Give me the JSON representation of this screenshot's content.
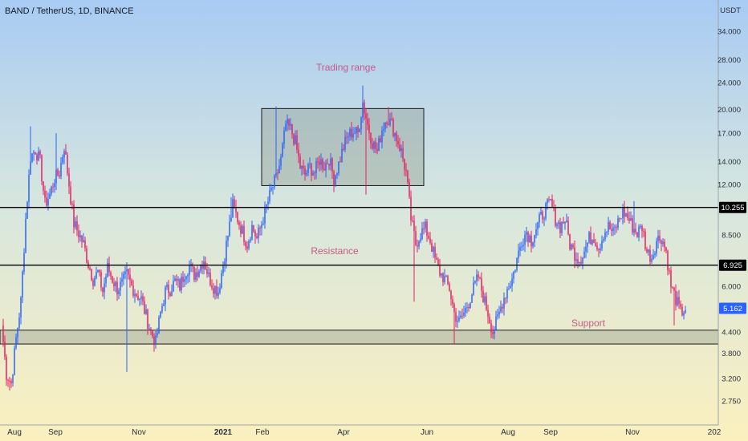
{
  "header": {
    "title": "BAND / TetherUS, 1D, BINANCE",
    "currency": "USDT"
  },
  "annotations": {
    "trading_range": "Trading range",
    "resistance": "Resistance",
    "support": "Support"
  },
  "colors": {
    "up": "#2962ff",
    "down": "#e91e63",
    "level_line": "#000000",
    "zone_fill": "#8c9687",
    "last_price_bg": "#2962ff"
  },
  "chart_data": {
    "type": "candlestick",
    "scale": "log",
    "ylim": [
      2.5,
      37
    ],
    "yticks": [
      "34.000",
      "28.000",
      "24.000",
      "20.000",
      "17.000",
      "14.000",
      "12.000",
      "8.500",
      "6.000",
      "4.400",
      "3.800",
      "3.200",
      "2.750"
    ],
    "xticks": [
      "Aug",
      "Sep",
      "Nov",
      "2021",
      "Feb",
      "Apr",
      "Jun",
      "Aug",
      "Sep",
      "Nov",
      "202"
    ],
    "levels": [
      {
        "value": 10.255,
        "label": "10.255"
      },
      {
        "value": 6.925,
        "label": "6.925"
      }
    ],
    "last_price": {
      "value": 5.162,
      "label": "5.162"
    },
    "zones": [
      {
        "name": "Trading range",
        "y_low": 11.9,
        "y_high": 20.1
      },
      {
        "name": "Support",
        "y_low": 4.05,
        "y_high": 4.45
      }
    ],
    "close_series": [
      {
        "i": 0,
        "v": 4.6
      },
      {
        "i": 3,
        "v": 3.3
      },
      {
        "i": 6,
        "v": 3.1
      },
      {
        "i": 9,
        "v": 4.2
      },
      {
        "i": 12,
        "v": 5.4
      },
      {
        "i": 15,
        "v": 9.5
      },
      {
        "i": 18,
        "v": 14.5
      },
      {
        "i": 21,
        "v": 15.2
      },
      {
        "i": 24,
        "v": 14.0
      },
      {
        "i": 27,
        "v": 10.5
      },
      {
        "i": 30,
        "v": 11.2
      },
      {
        "i": 33,
        "v": 12.5
      },
      {
        "i": 36,
        "v": 13.0
      },
      {
        "i": 39,
        "v": 15.6
      },
      {
        "i": 42,
        "v": 12.0
      },
      {
        "i": 45,
        "v": 9.2
      },
      {
        "i": 48,
        "v": 8.6
      },
      {
        "i": 51,
        "v": 8.0
      },
      {
        "i": 54,
        "v": 7.0
      },
      {
        "i": 57,
        "v": 6.3
      },
      {
        "i": 60,
        "v": 6.6
      },
      {
        "i": 63,
        "v": 5.8
      },
      {
        "i": 66,
        "v": 6.8
      },
      {
        "i": 69,
        "v": 6.3
      },
      {
        "i": 72,
        "v": 5.9
      },
      {
        "i": 75,
        "v": 6.1
      },
      {
        "i": 78,
        "v": 6.5
      },
      {
        "i": 81,
        "v": 6.0
      },
      {
        "i": 84,
        "v": 5.7
      },
      {
        "i": 87,
        "v": 5.5
      },
      {
        "i": 90,
        "v": 4.9
      },
      {
        "i": 93,
        "v": 4.4
      },
      {
        "i": 96,
        "v": 4.1
      },
      {
        "i": 99,
        "v": 5.0
      },
      {
        "i": 102,
        "v": 5.8
      },
      {
        "i": 105,
        "v": 5.9
      },
      {
        "i": 108,
        "v": 6.2
      },
      {
        "i": 111,
        "v": 6.0
      },
      {
        "i": 114,
        "v": 6.6
      },
      {
        "i": 117,
        "v": 6.9
      },
      {
        "i": 120,
        "v": 6.5
      },
      {
        "i": 123,
        "v": 6.8
      },
      {
        "i": 126,
        "v": 7.2
      },
      {
        "i": 129,
        "v": 6.4
      },
      {
        "i": 132,
        "v": 6.0
      },
      {
        "i": 135,
        "v": 5.8
      },
      {
        "i": 138,
        "v": 7.0
      },
      {
        "i": 141,
        "v": 8.5
      },
      {
        "i": 144,
        "v": 10.4
      },
      {
        "i": 147,
        "v": 9.5
      },
      {
        "i": 150,
        "v": 8.7
      },
      {
        "i": 153,
        "v": 8.0
      },
      {
        "i": 156,
        "v": 9.0
      },
      {
        "i": 159,
        "v": 8.3
      },
      {
        "i": 162,
        "v": 9.2
      },
      {
        "i": 165,
        "v": 10.3
      },
      {
        "i": 168,
        "v": 11.5
      },
      {
        "i": 171,
        "v": 12.5
      },
      {
        "i": 174,
        "v": 14.2
      },
      {
        "i": 177,
        "v": 18.0
      },
      {
        "i": 180,
        "v": 17.5
      },
      {
        "i": 183,
        "v": 16.0
      },
      {
        "i": 186,
        "v": 13.5
      },
      {
        "i": 189,
        "v": 12.8
      },
      {
        "i": 192,
        "v": 13.5
      },
      {
        "i": 195,
        "v": 13.0
      },
      {
        "i": 198,
        "v": 14.2
      },
      {
        "i": 201,
        "v": 13.6
      },
      {
        "i": 204,
        "v": 14.3
      },
      {
        "i": 207,
        "v": 12.5
      },
      {
        "i": 210,
        "v": 13.8
      },
      {
        "i": 213,
        "v": 15.5
      },
      {
        "i": 216,
        "v": 16.8
      },
      {
        "i": 219,
        "v": 17.2
      },
      {
        "i": 222,
        "v": 17.0
      },
      {
        "i": 225,
        "v": 21.0
      },
      {
        "i": 228,
        "v": 18.0
      },
      {
        "i": 231,
        "v": 16.0
      },
      {
        "i": 234,
        "v": 15.0
      },
      {
        "i": 237,
        "v": 17.5
      },
      {
        "i": 240,
        "v": 19.0
      },
      {
        "i": 243,
        "v": 18.0
      },
      {
        "i": 246,
        "v": 16.5
      },
      {
        "i": 249,
        "v": 15.0
      },
      {
        "i": 252,
        "v": 13.0
      },
      {
        "i": 255,
        "v": 9.5
      },
      {
        "i": 258,
        "v": 8.0
      },
      {
        "i": 261,
        "v": 8.6
      },
      {
        "i": 264,
        "v": 8.9
      },
      {
        "i": 267,
        "v": 8.2
      },
      {
        "i": 270,
        "v": 7.2
      },
      {
        "i": 273,
        "v": 6.6
      },
      {
        "i": 276,
        "v": 6.3
      },
      {
        "i": 279,
        "v": 5.9
      },
      {
        "i": 282,
        "v": 5.0
      },
      {
        "i": 285,
        "v": 4.7
      },
      {
        "i": 288,
        "v": 5.0
      },
      {
        "i": 291,
        "v": 5.4
      },
      {
        "i": 294,
        "v": 5.9
      },
      {
        "i": 297,
        "v": 6.4
      },
      {
        "i": 300,
        "v": 5.6
      },
      {
        "i": 303,
        "v": 5.0
      },
      {
        "i": 306,
        "v": 4.4
      },
      {
        "i": 309,
        "v": 4.8
      },
      {
        "i": 312,
        "v": 5.4
      },
      {
        "i": 315,
        "v": 5.9
      },
      {
        "i": 318,
        "v": 6.3
      },
      {
        "i": 321,
        "v": 7.2
      },
      {
        "i": 324,
        "v": 8.2
      },
      {
        "i": 327,
        "v": 8.7
      },
      {
        "i": 330,
        "v": 8.2
      },
      {
        "i": 333,
        "v": 8.9
      },
      {
        "i": 336,
        "v": 9.6
      },
      {
        "i": 339,
        "v": 10.2
      },
      {
        "i": 342,
        "v": 10.6
      },
      {
        "i": 345,
        "v": 9.5
      },
      {
        "i": 348,
        "v": 9.0
      },
      {
        "i": 351,
        "v": 9.5
      },
      {
        "i": 354,
        "v": 8.0
      },
      {
        "i": 357,
        "v": 7.5
      },
      {
        "i": 360,
        "v": 7.2
      },
      {
        "i": 363,
        "v": 7.6
      },
      {
        "i": 366,
        "v": 8.3
      },
      {
        "i": 369,
        "v": 8.4
      },
      {
        "i": 372,
        "v": 7.8
      },
      {
        "i": 375,
        "v": 8.6
      },
      {
        "i": 378,
        "v": 9.0
      },
      {
        "i": 381,
        "v": 8.6
      },
      {
        "i": 384,
        "v": 9.3
      },
      {
        "i": 387,
        "v": 10.0
      },
      {
        "i": 390,
        "v": 9.6
      },
      {
        "i": 393,
        "v": 9.0
      },
      {
        "i": 396,
        "v": 8.6
      },
      {
        "i": 399,
        "v": 9.0
      },
      {
        "i": 402,
        "v": 7.6
      },
      {
        "i": 405,
        "v": 7.3
      },
      {
        "i": 408,
        "v": 8.2
      },
      {
        "i": 411,
        "v": 8.4
      },
      {
        "i": 414,
        "v": 7.6
      },
      {
        "i": 417,
        "v": 6.0
      },
      {
        "i": 420,
        "v": 5.5
      },
      {
        "i": 423,
        "v": 5.0
      },
      {
        "i": 426,
        "v": 5.16
      }
    ],
    "wick_spikes": [
      {
        "i": 5,
        "v": 2.95
      },
      {
        "i": 18,
        "v": 17.8
      },
      {
        "i": 34,
        "v": 17.0
      },
      {
        "i": 78,
        "v": 3.35
      },
      {
        "i": 143,
        "v": 11.0
      },
      {
        "i": 171,
        "v": 20.4
      },
      {
        "i": 225,
        "v": 23.5
      },
      {
        "i": 227,
        "v": 11.2
      },
      {
        "i": 241,
        "v": 20.3
      },
      {
        "i": 257,
        "v": 5.4
      },
      {
        "i": 282,
        "v": 4.05
      },
      {
        "i": 307,
        "v": 4.2
      },
      {
        "i": 343,
        "v": 11.2
      },
      {
        "i": 394,
        "v": 10.7
      },
      {
        "i": 419,
        "v": 4.6
      }
    ]
  }
}
